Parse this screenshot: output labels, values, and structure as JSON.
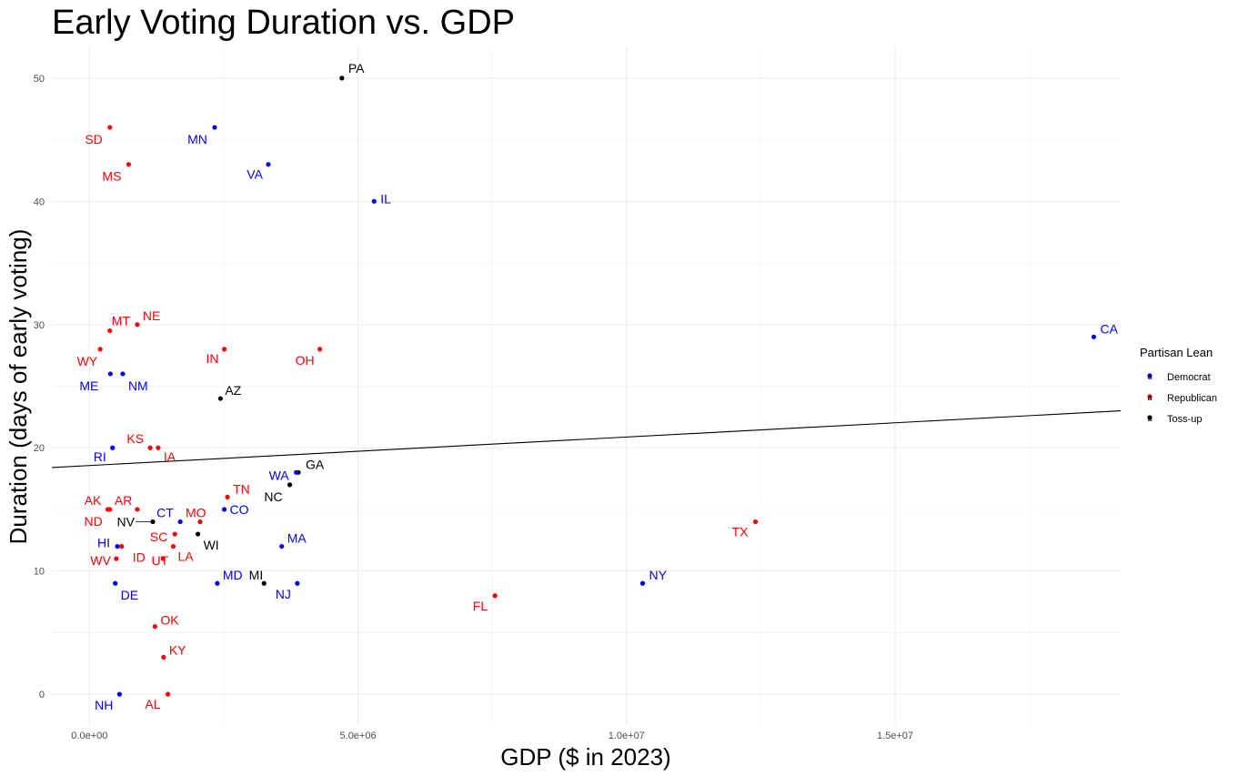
{
  "chart_data": {
    "type": "scatter",
    "title": "Early Voting Duration vs. GDP",
    "xlabel": "GDP ($ in 2023)",
    "ylabel": "Duration (days of early voting)",
    "xlim": [
      -700000,
      19200000
    ],
    "ylim": [
      -2.5,
      52.5
    ],
    "x_ticks": [
      0,
      5000000,
      10000000,
      15000000
    ],
    "x_tick_labels": [
      "0.0e+00",
      "5.0e+06",
      "1.0e+07",
      "1.5e+07"
    ],
    "y_ticks": [
      0,
      10,
      20,
      30,
      40,
      50
    ],
    "y_tick_labels": [
      "0",
      "10",
      "20",
      "30",
      "40",
      "50"
    ],
    "grid": true,
    "legend": {
      "title": "Partisan Lean",
      "position": "right",
      "entries": [
        {
          "name": "Democrat",
          "color": "#0000ff"
        },
        {
          "name": "Republican",
          "color": "#ff0000"
        },
        {
          "name": "Toss-up",
          "color": "#000000"
        }
      ]
    },
    "trend_line": {
      "x": [
        -700000,
        19200000
      ],
      "y": [
        18.4,
        23.0
      ]
    },
    "points": [
      {
        "label": "PA",
        "x": 4700000,
        "y": 50,
        "lean": "Toss-up"
      },
      {
        "label": "SD",
        "x": 380000,
        "y": 46,
        "lean": "Republican"
      },
      {
        "label": "MN",
        "x": 2330000,
        "y": 46,
        "lean": "Democrat"
      },
      {
        "label": "MS",
        "x": 730000,
        "y": 43,
        "lean": "Republican"
      },
      {
        "label": "VA",
        "x": 3330000,
        "y": 43,
        "lean": "Democrat"
      },
      {
        "label": "IL",
        "x": 5300000,
        "y": 40,
        "lean": "Democrat"
      },
      {
        "label": "MT",
        "x": 380000,
        "y": 29.5,
        "lean": "Republican"
      },
      {
        "label": "NE",
        "x": 890000,
        "y": 30,
        "lean": "Republican"
      },
      {
        "label": "CA",
        "x": 18700000,
        "y": 29,
        "lean": "Democrat"
      },
      {
        "label": "WY",
        "x": 200000,
        "y": 28,
        "lean": "Republican"
      },
      {
        "label": "IN",
        "x": 2510000,
        "y": 28,
        "lean": "Republican"
      },
      {
        "label": "OH",
        "x": 4290000,
        "y": 28,
        "lean": "Republican"
      },
      {
        "label": "ME",
        "x": 390000,
        "y": 26,
        "lean": "Democrat"
      },
      {
        "label": "NM",
        "x": 620000,
        "y": 26,
        "lean": "Democrat"
      },
      {
        "label": "AZ",
        "x": 2440000,
        "y": 24,
        "lean": "Toss-up"
      },
      {
        "label": "KS",
        "x": 1130000,
        "y": 20,
        "lean": "Republican"
      },
      {
        "label": "IA",
        "x": 1280000,
        "y": 20,
        "lean": "Republican"
      },
      {
        "label": "RI",
        "x": 430000,
        "y": 20,
        "lean": "Democrat"
      },
      {
        "label": "GA",
        "x": 3890000,
        "y": 18,
        "lean": "Toss-up"
      },
      {
        "label": "WA",
        "x": 3850000,
        "y": 18,
        "lean": "Democrat"
      },
      {
        "label": "NC",
        "x": 3730000,
        "y": 17,
        "lean": "Toss-up"
      },
      {
        "label": "TN",
        "x": 2570000,
        "y": 16,
        "lean": "Republican"
      },
      {
        "label": "AK",
        "x": 340000,
        "y": 15,
        "lean": "Republican"
      },
      {
        "label": "ND",
        "x": 380000,
        "y": 15,
        "lean": "Republican"
      },
      {
        "label": "AR",
        "x": 890000,
        "y": 15,
        "lean": "Republican"
      },
      {
        "label": "CO",
        "x": 2510000,
        "y": 15,
        "lean": "Democrat"
      },
      {
        "label": "NV",
        "x": 1180000,
        "y": 14,
        "lean": "Toss-up"
      },
      {
        "label": "CT",
        "x": 1690000,
        "y": 14,
        "lean": "Democrat"
      },
      {
        "label": "MO",
        "x": 2060000,
        "y": 14,
        "lean": "Republican"
      },
      {
        "label": "TX",
        "x": 12400000,
        "y": 14,
        "lean": "Republican"
      },
      {
        "label": "SC",
        "x": 1590000,
        "y": 13,
        "lean": "Republican"
      },
      {
        "label": "WI",
        "x": 2020000,
        "y": 13,
        "lean": "Toss-up"
      },
      {
        "label": "HI",
        "x": 520000,
        "y": 12,
        "lean": "Democrat"
      },
      {
        "label": "ID",
        "x": 600000,
        "y": 12,
        "lean": "Republican"
      },
      {
        "label": "MA",
        "x": 3580000,
        "y": 12,
        "lean": "Democrat"
      },
      {
        "label": "LA",
        "x": 1560000,
        "y": 12,
        "lean": "Republican"
      },
      {
        "label": "WV",
        "x": 500000,
        "y": 11,
        "lean": "Republican"
      },
      {
        "label": "UT",
        "x": 1370000,
        "y": 11,
        "lean": "Republican"
      },
      {
        "label": "DE",
        "x": 480000,
        "y": 9,
        "lean": "Democrat"
      },
      {
        "label": "MD",
        "x": 2380000,
        "y": 9,
        "lean": "Democrat"
      },
      {
        "label": "MI",
        "x": 3250000,
        "y": 9,
        "lean": "Toss-up"
      },
      {
        "label": "NJ",
        "x": 3870000,
        "y": 9,
        "lean": "Democrat"
      },
      {
        "label": "NY",
        "x": 10300000,
        "y": 9,
        "lean": "Democrat"
      },
      {
        "label": "FL",
        "x": 7550000,
        "y": 8,
        "lean": "Republican"
      },
      {
        "label": "OK",
        "x": 1220000,
        "y": 5.5,
        "lean": "Republican"
      },
      {
        "label": "KY",
        "x": 1380000,
        "y": 3,
        "lean": "Republican"
      },
      {
        "label": "NH",
        "x": 560000,
        "y": 0,
        "lean": "Democrat"
      },
      {
        "label": "AL",
        "x": 1460000,
        "y": 0,
        "lean": "Republican"
      }
    ]
  }
}
